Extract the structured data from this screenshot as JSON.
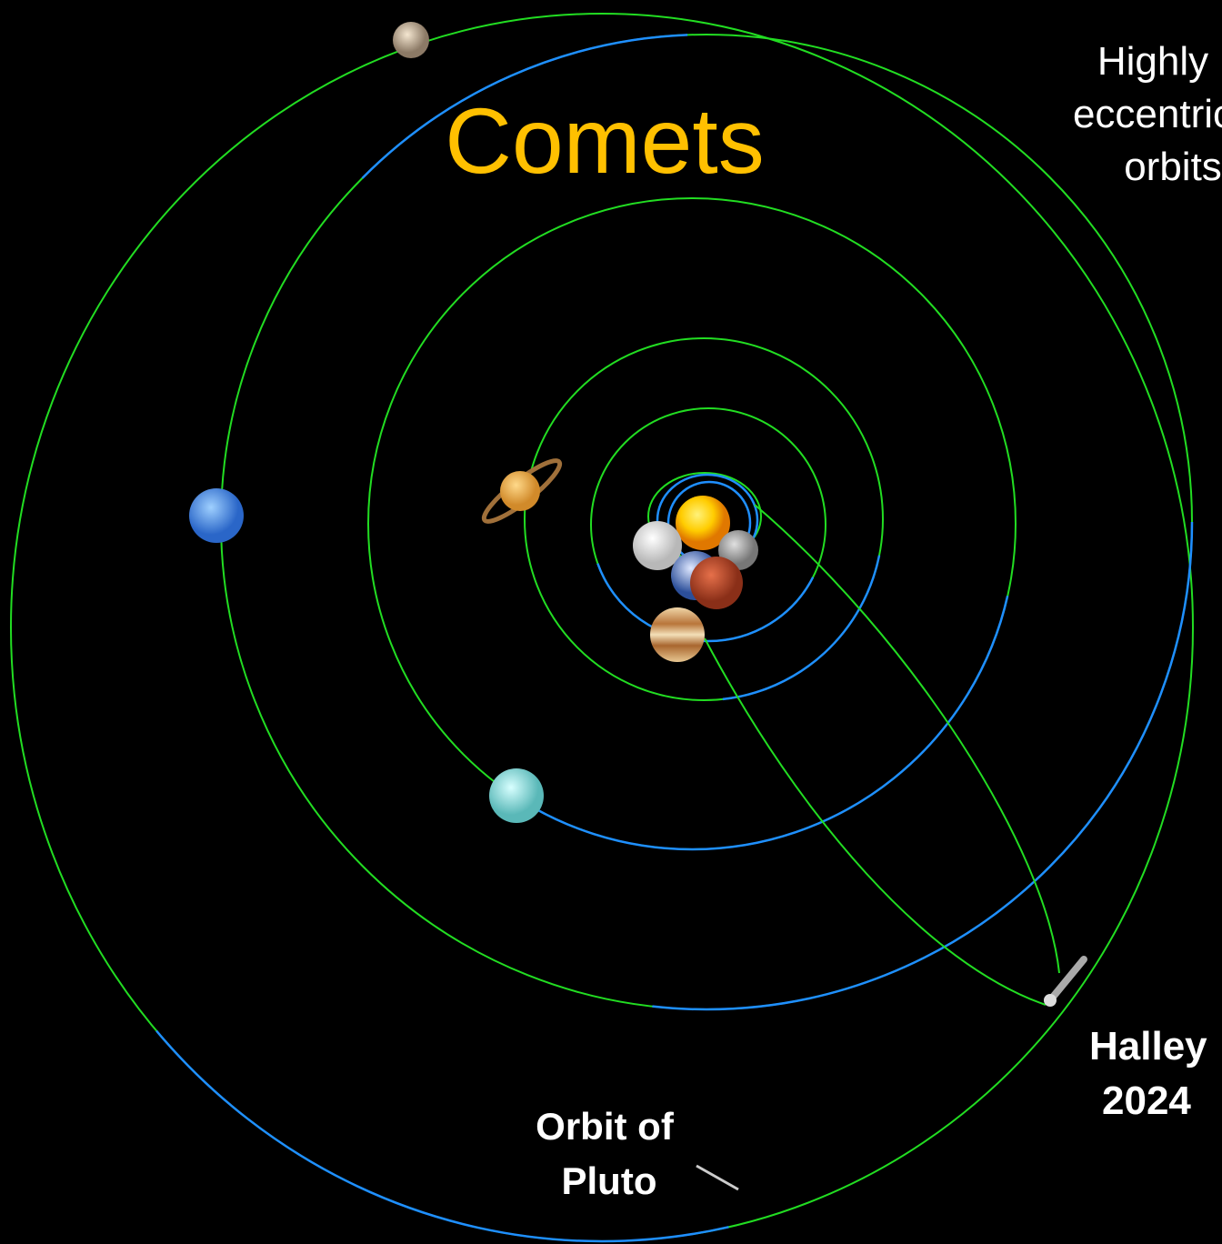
{
  "title": "Comets",
  "side_note": [
    "Highly",
    "eccentric",
    "orbits"
  ],
  "labels": {
    "halley": [
      "Halley",
      "2024"
    ],
    "pluto_orbit": [
      "Orbit of",
      "Pluto"
    ]
  }
}
